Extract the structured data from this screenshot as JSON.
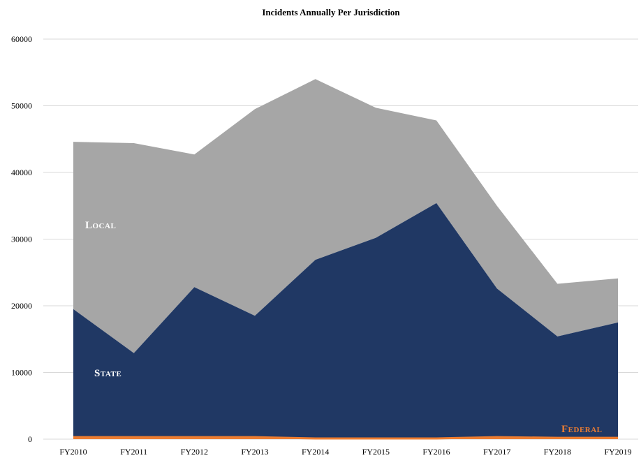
{
  "chart_data": {
    "type": "area",
    "stacked": true,
    "title": "Incidents Annually Per Jurisdiction",
    "xlabel": "",
    "ylabel": "",
    "categories": [
      "FY2010",
      "FY2011",
      "FY2012",
      "FY2013",
      "FY2014",
      "FY2015",
      "FY2016",
      "FY2017",
      "FY2018",
      "FY2019"
    ],
    "ylim": [
      0,
      60000
    ],
    "yticks": [
      0,
      10000,
      20000,
      30000,
      40000,
      50000,
      60000
    ],
    "grid": true,
    "series": [
      {
        "name": "Federal",
        "color": "#ed7d31",
        "values": [
          300,
          300,
          300,
          300,
          100,
          100,
          100,
          300,
          200,
          200
        ]
      },
      {
        "name": "State",
        "color": "#203864",
        "values": [
          19200,
          12600,
          22500,
          18200,
          26800,
          30100,
          35300,
          22300,
          15200,
          17300
        ]
      },
      {
        "name": "Local",
        "color": "#a6a6a6",
        "values": [
          25100,
          31500,
          19900,
          31000,
          27100,
          19500,
          12400,
          12400,
          7900,
          6600
        ]
      }
    ],
    "series_labels": {
      "Local": "Local",
      "State": "State",
      "Federal": "Federal"
    },
    "legend": "inline labels"
  }
}
